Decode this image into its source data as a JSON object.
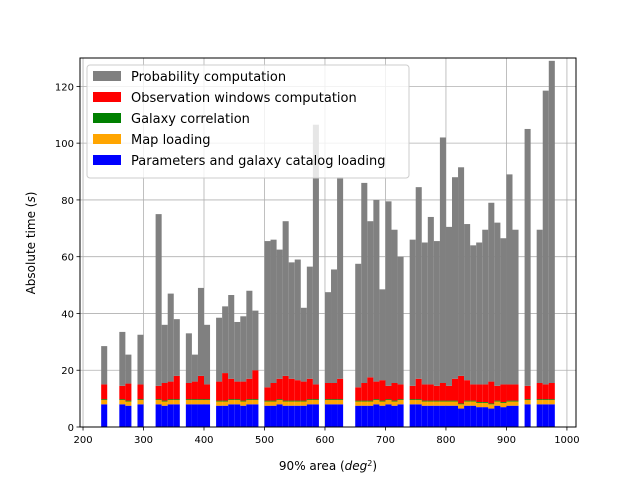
{
  "chart_data": {
    "type": "bar",
    "stacked": true,
    "xlabel": "90% area (deg²)",
    "xlabel_plain": "90% area (",
    "xlabel_italic": "deg",
    "xlabel_sup": "2",
    "xlabel_close": ")",
    "ylabel_plain": "Absolute time (",
    "ylabel_italic": "s",
    "ylabel_close": ")",
    "xlim": [
      195,
      1015
    ],
    "ylim": [
      0,
      130
    ],
    "xticks": [
      200,
      300,
      400,
      500,
      600,
      700,
      800,
      900,
      1000
    ],
    "yticks": [
      0,
      20,
      40,
      60,
      80,
      100,
      120
    ],
    "grid": true,
    "legend_position": "top-left",
    "bin_width": 10,
    "bins": [
      235,
      265,
      275,
      295,
      325,
      335,
      345,
      355,
      375,
      385,
      395,
      405,
      425,
      435,
      445,
      455,
      465,
      475,
      485,
      505,
      515,
      525,
      535,
      545,
      555,
      565,
      575,
      585,
      605,
      615,
      625,
      655,
      665,
      675,
      685,
      695,
      705,
      715,
      725,
      745,
      755,
      765,
      775,
      785,
      795,
      805,
      815,
      825,
      835,
      845,
      855,
      865,
      875,
      885,
      895,
      905,
      915,
      935,
      955,
      965,
      975
    ],
    "series": [
      {
        "name": "Parameters and galaxy catalog loading",
        "color": "#0000ff",
        "values": [
          8,
          8,
          7.5,
          8,
          8,
          7.5,
          8,
          8,
          8,
          8,
          8,
          8,
          7.5,
          7.5,
          8,
          8,
          7.5,
          8,
          8,
          7.5,
          7.5,
          8,
          7.5,
          7.5,
          7.5,
          7.5,
          8,
          8,
          8,
          8,
          8,
          7.5,
          7.5,
          7.5,
          8,
          7.5,
          8,
          7.5,
          8,
          8,
          8,
          7.5,
          7.5,
          7.5,
          7.5,
          7.5,
          7.5,
          6.5,
          7.5,
          7.5,
          7,
          7,
          6.5,
          7.5,
          7,
          7.5,
          7.5,
          8,
          8,
          8,
          8
        ]
      },
      {
        "name": "Map loading",
        "color": "#ffa500",
        "values": [
          1.5,
          1.5,
          1.5,
          1.5,
          1.5,
          1.5,
          1.5,
          1.5,
          1.5,
          1.5,
          1.5,
          1.5,
          1.5,
          1.5,
          1.5,
          1.5,
          1.5,
          1.5,
          1.5,
          1.5,
          1.5,
          1.5,
          1.5,
          1.5,
          1.5,
          1.5,
          1.5,
          1.5,
          1.5,
          1.5,
          1.5,
          1.5,
          1.5,
          1.5,
          1.5,
          1.5,
          1.5,
          1.5,
          1.5,
          1.5,
          1.5,
          1.5,
          1.5,
          1.5,
          1.5,
          1.5,
          1.5,
          1.5,
          1.5,
          1.5,
          1.5,
          1.5,
          1.5,
          1.5,
          1.5,
          1.5,
          1.5,
          1.5,
          1.5,
          1.5,
          1.5
        ]
      },
      {
        "name": "Galaxy correlation",
        "color": "#008000",
        "values": [
          0.3,
          0.3,
          0.3,
          0.3,
          0.3,
          0.3,
          0.3,
          0.3,
          0.3,
          0.3,
          0.3,
          0.3,
          0.3,
          0.3,
          0.3,
          0.3,
          0.3,
          0.3,
          0.3,
          0.3,
          0.3,
          0.3,
          0.3,
          0.3,
          0.3,
          0.3,
          0.3,
          0.3,
          0.3,
          0.3,
          0.3,
          0.3,
          0.3,
          0.3,
          0.3,
          0.3,
          0.3,
          0.3,
          0.3,
          0.3,
          0.3,
          0.3,
          0.3,
          0.3,
          0.3,
          0.3,
          0.3,
          0.3,
          0.3,
          0.3,
          0.3,
          0.3,
          0.3,
          0.3,
          0.3,
          0.3,
          0.3,
          0.3,
          0.3,
          0.3,
          0.3
        ]
      },
      {
        "name": "Observation windows computation",
        "color": "#ff0000",
        "values": [
          5.2,
          4.7,
          6,
          5.2,
          4.7,
          6.2,
          6.2,
          8.2,
          5.7,
          6.2,
          8.2,
          5.2,
          6.7,
          9.7,
          7.2,
          6.2,
          6.7,
          7.2,
          10.2,
          4.7,
          6.2,
          7.2,
          8.7,
          7.7,
          7.2,
          6.7,
          7.2,
          5.2,
          5.7,
          5.7,
          7.2,
          4.7,
          6.2,
          8.2,
          6.2,
          7.2,
          4.7,
          6.2,
          5.2,
          4.7,
          7.2,
          5.7,
          5.7,
          5.2,
          6.2,
          5.2,
          7.7,
          9.7,
          7.2,
          5.7,
          6.2,
          6.2,
          7.7,
          5.2,
          6.2,
          5.7,
          5.7,
          4.7,
          5.7,
          5.2,
          5.7
        ]
      },
      {
        "name": "Probability computation",
        "color": "#808080",
        "values": [
          13.5,
          19,
          10.2,
          17.5,
          60.5,
          20.5,
          31,
          20,
          17.5,
          9.5,
          31,
          21,
          22.5,
          23.5,
          29.5,
          21,
          23,
          31,
          21,
          51.5,
          50.5,
          45.5,
          54.5,
          41,
          42.5,
          26,
          39.5,
          91.5,
          32,
          40,
          71,
          43.5,
          70.5,
          55,
          64,
          32,
          65,
          54,
          45,
          51.5,
          67.5,
          50,
          59,
          51,
          86.5,
          56,
          71,
          73.5,
          55,
          49,
          50,
          54.5,
          63,
          57.5,
          51.5,
          74,
          54.5,
          90.5,
          54,
          103.5,
          113.5
        ]
      }
    ]
  }
}
